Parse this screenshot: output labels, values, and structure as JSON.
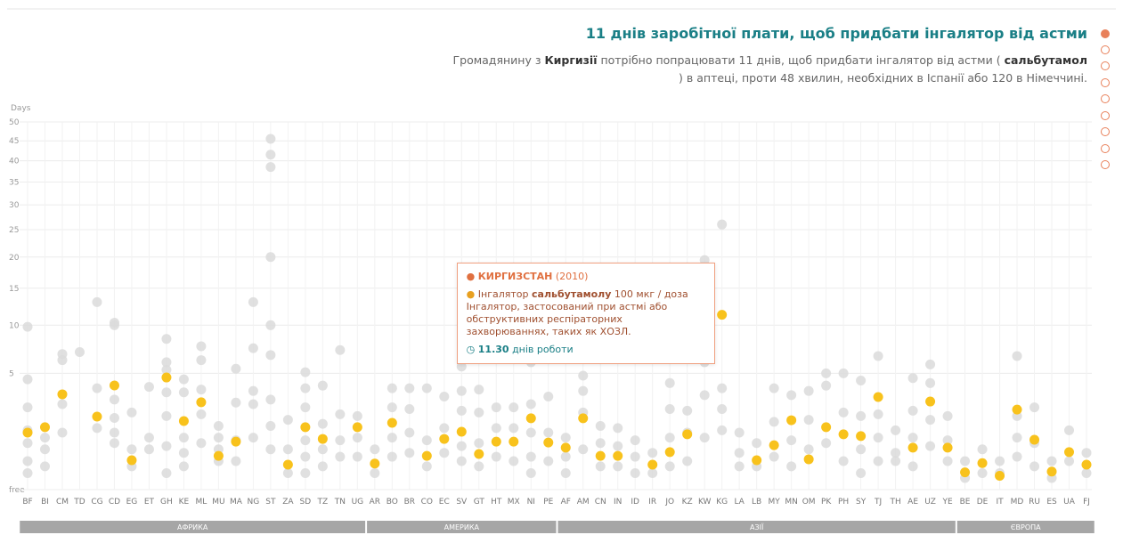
{
  "header": {
    "title": "11 днів заробітної плати, щоб придбати інгалятор від астми",
    "subtitle": [
      {
        "text": "Громадянину з ",
        "bold": false
      },
      {
        "text": "Киргизії",
        "bold": true
      },
      {
        "text": " потрібно попрацювати 11 днів, щоб придбати інгалятор від астми ( ",
        "bold": false
      },
      {
        "text": "сальбутамол",
        "bold": true
      },
      {
        "text": " ) в аптеці, проти 48 хвилин, необхідних в Іспанії або 120 в Німеччині.",
        "bold": false
      }
    ]
  },
  "chart_data": {
    "type": "dot_strip",
    "y_label": "Days",
    "scale": "sqrt",
    "ylim": [
      0,
      50
    ],
    "yticks": [
      {
        "value": 0,
        "label": "free"
      },
      5,
      10,
      15,
      20,
      25,
      30,
      35,
      40,
      45,
      50
    ],
    "grid": true,
    "highlight_color": "#f8c21c",
    "other_color": "#dadada",
    "regions": [
      {
        "name": "АФРИКА",
        "categories": [
          "BF",
          "BI",
          "CM",
          "TD",
          "CG",
          "CD",
          "EG",
          "ET",
          "GH",
          "KE",
          "ML",
          "MU",
          "MA",
          "NG",
          "ST",
          "ZA",
          "SD",
          "TZ",
          "TN",
          "UG"
        ],
        "values": [
          1.2,
          1.44,
          3.36,
          null,
          1.97,
          4.01,
          0.32,
          null,
          4.65,
          1.74,
          2.82,
          0.42,
          0.85,
          null,
          null,
          0.23,
          1.44,
          0.95,
          null,
          1.44
        ],
        "others": [
          [
            9.8,
            4.5,
            2.5,
            1.3,
            0.8,
            0.3,
            0.1
          ],
          [
            1.0,
            0.6,
            0.2
          ],
          [
            6.8,
            6.2,
            2.7,
            1.2
          ],
          [
            7.0
          ],
          [
            13,
            3.8,
            1.4
          ],
          [
            10.3,
            10,
            3.0,
            1.9,
            1.2,
            0.8
          ],
          [
            2.2,
            0.6,
            0.2
          ],
          [
            3.9,
            1.0,
            0.6
          ],
          [
            8.4,
            6,
            5.3,
            3.5,
            2.0,
            0.7,
            0.1
          ],
          [
            4.5,
            3.5,
            1.0,
            0.5,
            0.2
          ],
          [
            7.6,
            6.2,
            3.7,
            2.1,
            0.8
          ],
          [
            1.5,
            1.0,
            0.6,
            0.3
          ],
          [
            5.4,
            2.8,
            0.9,
            0.3
          ],
          [
            13,
            7.4,
            3.6,
            2.7,
            1.0
          ],
          [
            45.5,
            41.5,
            38.5,
            20,
            10,
            6.7,
            3,
            1.5,
            0.6
          ],
          [
            1.8,
            0.6,
            0.1
          ],
          [
            5.1,
            3.8,
            2.5,
            0.9,
            0.4,
            0.1
          ],
          [
            4.0,
            1.6,
            0.6,
            0.2
          ],
          [
            7.2,
            2.1,
            0.9,
            0.4
          ],
          [
            2.0,
            1.0,
            0.4
          ]
        ]
      },
      {
        "name": "АМЕРИКА",
        "categories": [
          "AR",
          "BO",
          "BR",
          "CO",
          "EC",
          "SV",
          "GT",
          "HT",
          "MX",
          "NI",
          "PE"
        ],
        "values": [
          0.25,
          1.65,
          null,
          0.42,
          0.95,
          1.24,
          0.47,
          0.85,
          0.85,
          1.88,
          0.82
        ],
        "others": [
          [
            0.6,
            0.1
          ],
          [
            3.8,
            2.5,
            1.0,
            0.4
          ],
          [
            3.8,
            2.4,
            1.2,
            0.5
          ],
          [
            3.8,
            0.9,
            0.2
          ],
          [
            3.2,
            1.4,
            0.5
          ],
          [
            5.6,
            3.6,
            2.3,
            0.7,
            0.3
          ],
          [
            3.7,
            2.2,
            0.8,
            0.2
          ],
          [
            2.5,
            1.4,
            0.4
          ],
          [
            2.5,
            1.4,
            0.3
          ],
          [
            6.0,
            2.7,
            1.2,
            0.4,
            0.1
          ],
          [
            3.2,
            1.2,
            0.3
          ]
        ]
      },
      {
        "name": "АЗІЇ",
        "categories": [
          "AF",
          "AM",
          "CN",
          "IN",
          "ID",
          "IR",
          "JO",
          "KZ",
          "KW",
          "KG",
          "LA",
          "LB",
          "MY",
          "MN",
          "OM",
          "PK",
          "PH",
          "SY",
          "TJ",
          "TH",
          "AE",
          "UZ",
          "YE"
        ],
        "values": [
          0.65,
          1.88,
          0.42,
          0.42,
          null,
          0.23,
          0.52,
          1.13,
          null,
          11.3,
          null,
          0.32,
          0.73,
          1.78,
          0.34,
          1.44,
          1.13,
          1.06,
          3.17,
          null,
          0.65,
          2.87,
          0.65
        ],
        "others": [
          [
            1.0,
            0.4,
            0.1
          ],
          [
            4.8,
            3.6,
            2.2,
            0.6
          ],
          [
            1.5,
            0.8,
            0.2
          ],
          [
            1.4,
            0.7,
            0.2
          ],
          [
            0.9,
            0.4,
            0.1
          ],
          [
            0.5,
            0.1
          ],
          [
            4.2,
            2.4,
            1.0,
            0.2
          ],
          [
            2.3,
            1.2,
            0.3
          ],
          [
            19.5,
            6.0,
            3.3,
            1.0
          ],
          [
            26,
            3.8,
            2.4,
            1.3
          ],
          [
            1.2,
            0.5,
            0.2
          ],
          [
            0.8,
            0.2
          ],
          [
            3.8,
            1.7,
            0.4
          ],
          [
            3.3,
            0.9,
            0.2
          ],
          [
            3.6,
            1.8,
            0.6
          ],
          [
            5.0,
            4.0,
            0.8
          ],
          [
            5.0,
            2.2,
            0.3
          ],
          [
            4.4,
            2.0,
            0.6,
            0.1
          ],
          [
            6.6,
            2.1,
            1.0,
            0.3
          ],
          [
            1.3,
            0.5,
            0.3
          ],
          [
            4.6,
            2.3,
            1.0,
            0.2
          ],
          [
            5.8,
            4.2,
            1.8,
            0.7
          ],
          [
            2.0,
            0.9,
            0.3
          ]
        ]
      },
      {
        "name": "ЄВРОПА",
        "categories": [
          "BE",
          "DE",
          "IT",
          "MD",
          "RU",
          "ES",
          "UA",
          "FJ"
        ],
        "values": [
          0.11,
          0.26,
          0.07,
          2.37,
          0.92,
          0.12,
          0.52,
          0.23
        ],
        "others": [
          [
            0.3,
            0.05
          ],
          [
            0.6,
            0.1
          ],
          [
            0.3,
            0.1
          ],
          [
            6.6,
            2.0,
            1.0,
            0.4
          ],
          [
            2.5,
            0.8,
            0.2
          ],
          [
            0.3,
            0.05
          ],
          [
            1.3,
            0.3
          ],
          [
            0.5,
            0.1
          ]
        ]
      }
    ],
    "tooltip": {
      "country": "КИРГИЗСТАН",
      "year": "(2010)",
      "drug_prefix": "Інгалятор",
      "drug_bold": "сальбутамолу",
      "dose": "100 мкг / доза",
      "description": "Інгалятор, застосований при астмі або обструктивних респіраторних захворюваннях, таких як ХОЗЛ.",
      "value": 11.3,
      "value_label": "11.30",
      "unit": "днів роботи"
    }
  }
}
